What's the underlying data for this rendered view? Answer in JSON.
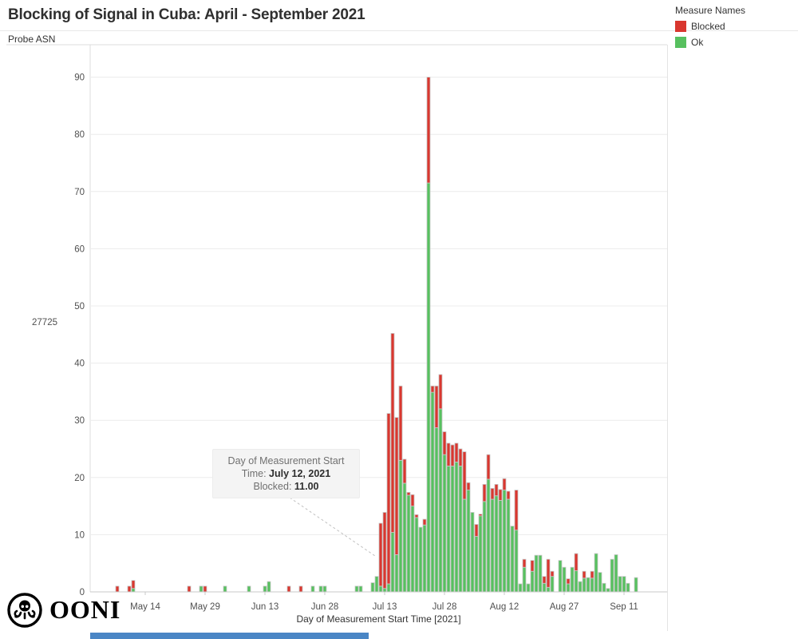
{
  "header": {
    "title": "Blocking of Signal in Cuba: April - September 2021",
    "row_axis_label": "Probe ASN",
    "row_label": "27725"
  },
  "legend": {
    "title": "Measure Names",
    "items": [
      {
        "label": "Blocked",
        "color": "#d9372f"
      },
      {
        "label": "Ok",
        "color": "#57c05f"
      }
    ]
  },
  "annotation": {
    "line1": "Day of Measurement Start",
    "line2_label": "Time: ",
    "line2_value": "July 12, 2021",
    "line3_label": "Blocked: ",
    "line3_value": "11.00"
  },
  "logo_word": "OONI",
  "colors": {
    "blocked": "#d9372f",
    "ok": "#57c05f",
    "bar_border": "#c8c8c8",
    "gridline": "#ececec",
    "axis_line": "#c9c9c9",
    "pane_border": "#dcdcdc",
    "bottom_strip": "#4a86c5"
  },
  "chart_data": {
    "type": "bar",
    "stacked": true,
    "title": "Blocking of Signal in Cuba: April - September 2021",
    "xlabel": "Day of Measurement Start Time [2021]",
    "ylabel": "Probe ASN 27725",
    "ylim": [
      0,
      90
    ],
    "grid": "horizontal",
    "legend_position": "top-right",
    "series_names": [
      "Blocked",
      "Ok"
    ],
    "y_ticks": [
      0,
      10,
      20,
      30,
      40,
      50,
      60,
      70,
      80,
      90
    ],
    "x_ticks": [
      {
        "label": "May 14",
        "day": 15
      },
      {
        "label": "May 29",
        "day": 30
      },
      {
        "label": "Jun 13",
        "day": 45
      },
      {
        "label": "Jun 28",
        "day": 60
      },
      {
        "label": "Jul 13",
        "day": 75
      },
      {
        "label": "Jul 28",
        "day": 90
      },
      {
        "label": "Aug 12",
        "day": 105
      },
      {
        "label": "Aug 27",
        "day": 120
      },
      {
        "label": "Sep 11",
        "day": 135
      }
    ],
    "bars_format": [
      "date",
      "day_index_from_Apr_29",
      "blocked",
      "ok"
    ],
    "bars": [
      [
        "May 7",
        8,
        1,
        0
      ],
      [
        "May 10",
        11,
        1,
        0
      ],
      [
        "May 11",
        12,
        1.4,
        0.6
      ],
      [
        "May 25",
        26,
        1,
        0
      ],
      [
        "May 28",
        29,
        0,
        1
      ],
      [
        "May 29",
        30,
        1,
        0
      ],
      [
        "Jun 3",
        35,
        0,
        1
      ],
      [
        "Jun 9",
        41,
        0,
        1
      ],
      [
        "Jun 13",
        45,
        0,
        1
      ],
      [
        "Jun 14",
        46,
        0,
        1.8
      ],
      [
        "Jun 19",
        51,
        1,
        0
      ],
      [
        "Jun 22",
        54,
        1,
        0
      ],
      [
        "Jun 25",
        57,
        0,
        1
      ],
      [
        "Jun 27",
        59,
        0,
        1
      ],
      [
        "Jun 28",
        60,
        0,
        1
      ],
      [
        "Jul 6",
        68,
        0,
        1
      ],
      [
        "Jul 7",
        69,
        0,
        1
      ],
      [
        "Jul 10",
        72,
        0,
        1.6
      ],
      [
        "Jul 11",
        73,
        0,
        2.7
      ],
      [
        "Jul 12",
        74,
        11,
        1
      ],
      [
        "Jul 13",
        75,
        13.3,
        0.6
      ],
      [
        "Jul 14",
        76,
        29.8,
        1.4
      ],
      [
        "Jul 15",
        77,
        34.8,
        10.4
      ],
      [
        "Jul 16",
        78,
        24,
        6.5
      ],
      [
        "Jul 17",
        79,
        13,
        23
      ],
      [
        "Jul 18",
        80,
        4.2,
        19
      ],
      [
        "Jul 19",
        81,
        0.5,
        16.9
      ],
      [
        "Jul 20",
        82,
        2,
        15
      ],
      [
        "Jul 21",
        83,
        0.5,
        13
      ],
      [
        "Jul 22",
        84,
        0,
        11.3
      ],
      [
        "Jul 23",
        85,
        1,
        11.7
      ],
      [
        "Jul 24",
        86,
        18.5,
        71.5
      ],
      [
        "Jul 25",
        87,
        1.1,
        34.9
      ],
      [
        "Jul 26",
        88,
        7.3,
        28.7
      ],
      [
        "Jul 27",
        89,
        6,
        32
      ],
      [
        "Jul 28",
        90,
        4,
        24
      ],
      [
        "Jul 29",
        91,
        4,
        22
      ],
      [
        "Jul 30",
        92,
        3.7,
        22
      ],
      [
        "Jul 31",
        93,
        3.3,
        22.7
      ],
      [
        "Aug 1",
        94,
        3,
        22
      ],
      [
        "Aug 2",
        95,
        8.3,
        16.2
      ],
      [
        "Aug 3",
        96,
        1.3,
        17.8
      ],
      [
        "Aug 4",
        97,
        0,
        13.9
      ],
      [
        "Aug 5",
        98,
        2.1,
        9.7
      ],
      [
        "Aug 6",
        99,
        0.3,
        13.3
      ],
      [
        "Aug 7",
        100,
        3,
        15.8
      ],
      [
        "Aug 8",
        101,
        4.3,
        19.7
      ],
      [
        "Aug 9",
        102,
        1.9,
        16.2
      ],
      [
        "Aug 10",
        103,
        2,
        16.8
      ],
      [
        "Aug 11",
        104,
        1.9,
        16
      ],
      [
        "Aug 12",
        105,
        2,
        17.8
      ],
      [
        "Aug 13",
        106,
        1.4,
        16.2
      ],
      [
        "Aug 14",
        107,
        0,
        11.5
      ],
      [
        "Aug 15",
        108,
        7,
        10.8
      ],
      [
        "Aug 16",
        109,
        0,
        1.4
      ],
      [
        "Aug 17",
        110,
        1.4,
        4.3
      ],
      [
        "Aug 18",
        111,
        0,
        1.4
      ],
      [
        "Aug 19",
        112,
        1.9,
        3.6
      ],
      [
        "Aug 20",
        113,
        0,
        6.4
      ],
      [
        "Aug 21",
        114,
        0,
        6.4
      ],
      [
        "Aug 22",
        115,
        1.2,
        1.5
      ],
      [
        "Aug 23",
        116,
        4.9,
        0.8
      ],
      [
        "Aug 24",
        117,
        0.9,
        2.7
      ],
      [
        "Aug 26",
        119,
        0,
        5.5
      ],
      [
        "Aug 27",
        120,
        0,
        4.3
      ],
      [
        "Aug 28",
        121,
        0.9,
        1.4
      ],
      [
        "Aug 29",
        122,
        0,
        4.3
      ],
      [
        "Aug 30",
        123,
        3,
        3.7
      ],
      [
        "Aug 31",
        124,
        0,
        1.8
      ],
      [
        "Sep 1",
        125,
        1.2,
        2.4
      ],
      [
        "Sep 2",
        126,
        0,
        2.5
      ],
      [
        "Sep 3",
        127,
        1.2,
        2.4
      ],
      [
        "Sep 4",
        128,
        0,
        6.7
      ],
      [
        "Sep 5",
        129,
        0,
        3.4
      ],
      [
        "Sep 6",
        130,
        0,
        1.5
      ],
      [
        "Sep 7",
        131,
        0,
        0.6
      ],
      [
        "Sep 8",
        132,
        0,
        5.7
      ],
      [
        "Sep 9",
        133,
        0,
        6.5
      ],
      [
        "Sep 10",
        134,
        0,
        2.7
      ],
      [
        "Sep 11",
        135,
        0,
        2.7
      ],
      [
        "Sep 12",
        136,
        0,
        1.5
      ],
      [
        "Sep 14",
        138,
        0,
        2.5
      ]
    ],
    "annotation": {
      "target_date": "July 12, 2021",
      "blocked_value": 11.0
    }
  }
}
